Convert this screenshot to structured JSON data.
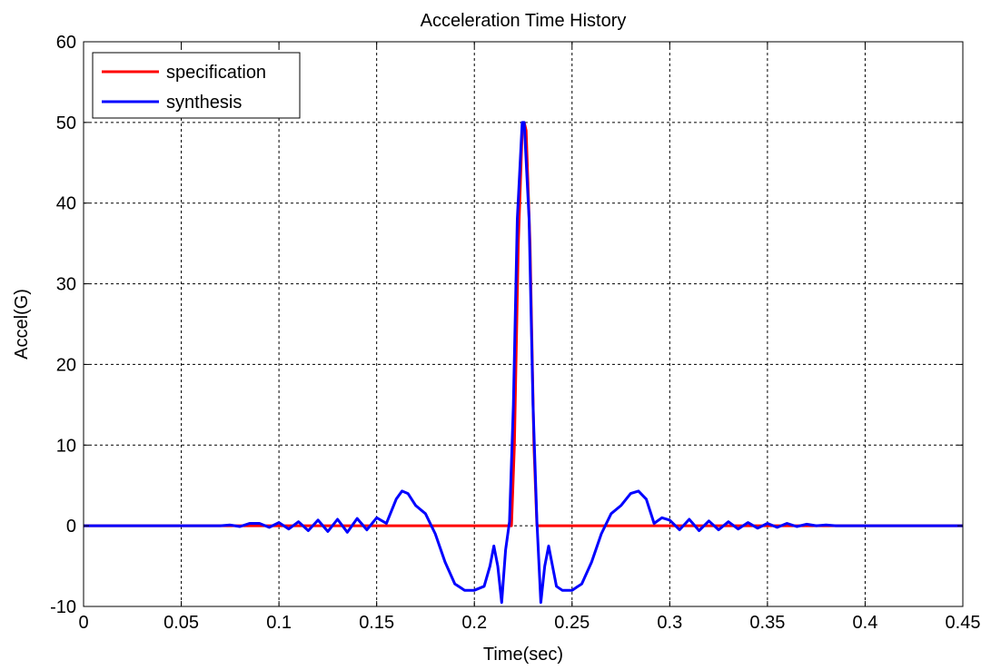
{
  "chart_data": {
    "type": "line",
    "title": "Acceleration Time History",
    "xlabel": "Time(sec)",
    "ylabel": "Accel(G)",
    "xlim": [
      0,
      0.45
    ],
    "ylim": [
      -10,
      60
    ],
    "xticks": [
      0,
      0.05,
      0.1,
      0.15,
      0.2,
      0.25,
      0.3,
      0.35,
      0.4,
      0.45
    ],
    "xtick_labels": [
      "0",
      "0.05",
      "0.1",
      "0.15",
      "0.2",
      "0.25",
      "0.3",
      "0.35",
      "0.4",
      "0.45"
    ],
    "yticks": [
      -10,
      0,
      10,
      20,
      30,
      40,
      50,
      60
    ],
    "ytick_labels": [
      "-10",
      "0",
      "10",
      "20",
      "30",
      "40",
      "50",
      "60"
    ],
    "grid": true,
    "legend": "top-left",
    "series": [
      {
        "name": "specification",
        "color": "#ff0000",
        "x": [
          0,
          0.219,
          0.2205,
          0.2225,
          0.2245,
          0.2255,
          0.2265,
          0.2285,
          0.2305,
          0.232,
          0.45
        ],
        "y": [
          0,
          0,
          10,
          35,
          49,
          50,
          49,
          35,
          10,
          0,
          0
        ]
      },
      {
        "name": "synthesis",
        "color": "#0000ff",
        "x": [
          0,
          0.065,
          0.07,
          0.075,
          0.08,
          0.085,
          0.09,
          0.095,
          0.1,
          0.105,
          0.11,
          0.115,
          0.12,
          0.125,
          0.13,
          0.135,
          0.14,
          0.145,
          0.15,
          0.155,
          0.16,
          0.163,
          0.166,
          0.17,
          0.175,
          0.18,
          0.185,
          0.19,
          0.195,
          0.2,
          0.205,
          0.208,
          0.21,
          0.212,
          0.214,
          0.216,
          0.218,
          0.22,
          0.222,
          0.2245,
          0.2255,
          0.228,
          0.23,
          0.232,
          0.234,
          0.236,
          0.238,
          0.24,
          0.242,
          0.245,
          0.25,
          0.255,
          0.26,
          0.265,
          0.27,
          0.275,
          0.28,
          0.284,
          0.288,
          0.292,
          0.296,
          0.3,
          0.305,
          0.31,
          0.315,
          0.32,
          0.325,
          0.33,
          0.335,
          0.34,
          0.345,
          0.35,
          0.355,
          0.36,
          0.365,
          0.37,
          0.375,
          0.38,
          0.385,
          0.45
        ],
        "y": [
          0,
          0,
          0,
          0.1,
          -0.1,
          0.3,
          0.3,
          -0.2,
          0.4,
          -0.4,
          0.5,
          -0.6,
          0.7,
          -0.7,
          0.8,
          -0.8,
          0.9,
          -0.5,
          1.0,
          0.3,
          3.3,
          4.3,
          4.0,
          2.5,
          1.5,
          -1.0,
          -4.5,
          -7.2,
          -8.0,
          -8.0,
          -7.5,
          -5.0,
          -2.5,
          -5.0,
          -9.5,
          -3.0,
          0.5,
          15,
          38,
          50,
          50,
          38,
          15,
          0.5,
          -9.5,
          -5.0,
          -2.5,
          -5.0,
          -7.5,
          -8.0,
          -8.0,
          -7.2,
          -4.5,
          -1.0,
          1.5,
          2.5,
          4.0,
          4.3,
          3.3,
          0.3,
          1.0,
          0.7,
          -0.5,
          0.8,
          -0.6,
          0.6,
          -0.5,
          0.5,
          -0.4,
          0.4,
          -0.3,
          0.3,
          -0.2,
          0.3,
          -0.1,
          0.2,
          0,
          0.1,
          0,
          0
        ]
      }
    ]
  }
}
